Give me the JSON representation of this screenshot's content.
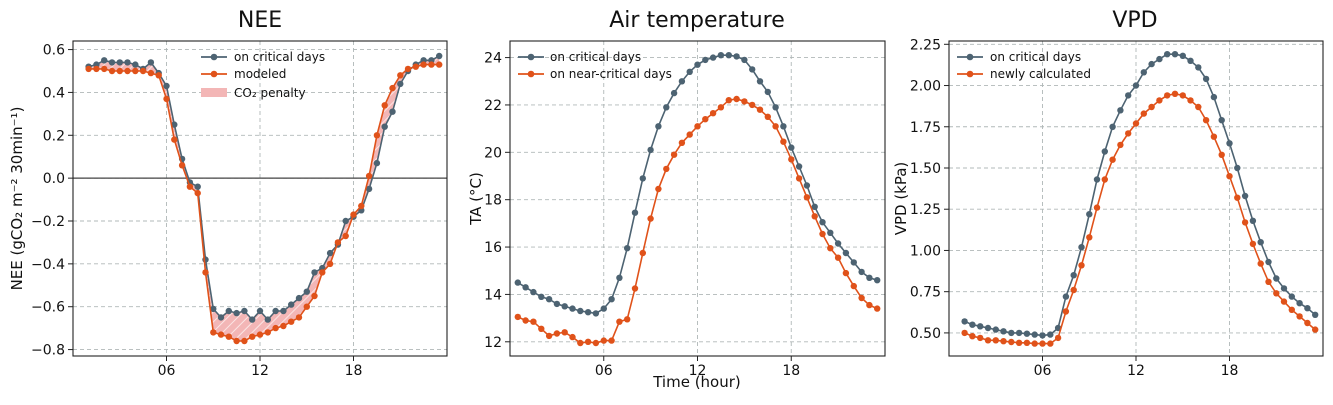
{
  "colors": {
    "critical": "#4d6372",
    "modeled": "#e0521a",
    "penalty_fill": "#f3b6b6",
    "zero_line": "#444444"
  },
  "chart_data": [
    {
      "type": "line",
      "title": "NEE",
      "ylabel": "NEE  (gCO₂ m⁻² 30min⁻¹)",
      "xlabel": "",
      "xlim": [
        0,
        24
      ],
      "ylim": [
        -0.83,
        0.64
      ],
      "xticks": [
        6,
        12,
        18
      ],
      "xticklabels": [
        "06",
        "12",
        "18"
      ],
      "yticks": [
        -0.8,
        -0.6,
        -0.4,
        -0.2,
        0.0,
        0.2,
        0.4,
        0.6
      ],
      "yticklabels": [
        "−0.8",
        "−0.6",
        "−0.4",
        "−0.2",
        "0.0",
        "0.2",
        "0.4",
        "0.6"
      ],
      "zero_line": true,
      "grid": true,
      "legend": "top-right",
      "penalty_label": "CO₂ penalty",
      "x": [
        1,
        1.5,
        2,
        2.5,
        3,
        3.5,
        4,
        4.5,
        5,
        5.5,
        6,
        6.5,
        7,
        7.5,
        8,
        8.5,
        9,
        9.5,
        10,
        10.5,
        11,
        11.5,
        12,
        12.5,
        13,
        13.5,
        14,
        14.5,
        15,
        15.5,
        16,
        16.5,
        17,
        17.5,
        18,
        18.5,
        19,
        19.5,
        20,
        20.5,
        21,
        21.5,
        22,
        22.5,
        23,
        23.5
      ],
      "series": [
        {
          "name": "on critical days",
          "values": [
            0.52,
            0.53,
            0.55,
            0.54,
            0.54,
            0.54,
            0.53,
            0.51,
            0.54,
            0.49,
            0.43,
            0.25,
            0.09,
            -0.02,
            -0.04,
            -0.38,
            -0.61,
            -0.65,
            -0.62,
            -0.63,
            -0.62,
            -0.66,
            -0.62,
            -0.66,
            -0.62,
            -0.62,
            -0.59,
            -0.56,
            -0.53,
            -0.44,
            -0.42,
            -0.35,
            -0.31,
            -0.2,
            -0.18,
            -0.15,
            -0.05,
            0.07,
            0.24,
            0.31,
            0.44,
            0.5,
            0.53,
            0.55,
            0.55,
            0.57
          ]
        },
        {
          "name": "modeled",
          "values": [
            0.51,
            0.51,
            0.51,
            0.5,
            0.5,
            0.5,
            0.5,
            0.5,
            0.49,
            0.48,
            0.37,
            0.18,
            0.06,
            -0.04,
            -0.07,
            -0.44,
            -0.72,
            -0.73,
            -0.74,
            -0.76,
            -0.76,
            -0.74,
            -0.73,
            -0.72,
            -0.7,
            -0.69,
            -0.67,
            -0.65,
            -0.6,
            -0.55,
            -0.44,
            -0.4,
            -0.3,
            -0.27,
            -0.17,
            -0.13,
            0.01,
            0.2,
            0.34,
            0.42,
            0.48,
            0.51,
            0.52,
            0.53,
            0.53,
            0.53
          ]
        }
      ]
    },
    {
      "type": "line",
      "title": "Air temperature",
      "ylabel": "TA  (°C)",
      "xlabel": "Time (hour)",
      "xlim": [
        0,
        24
      ],
      "ylim": [
        11.4,
        24.7
      ],
      "xticks": [
        6,
        12,
        18
      ],
      "xticklabels": [
        "06",
        "12",
        "18"
      ],
      "yticks": [
        12,
        14,
        16,
        18,
        20,
        22,
        24
      ],
      "yticklabels": [
        "12",
        "14",
        "16",
        "18",
        "20",
        "22",
        "24"
      ],
      "grid": true,
      "legend": "top-left",
      "x": [
        0.5,
        1,
        1.5,
        2,
        2.5,
        3,
        3.5,
        4,
        4.5,
        5,
        5.5,
        6,
        6.5,
        7,
        7.5,
        8,
        8.5,
        9,
        9.5,
        10,
        10.5,
        11,
        11.5,
        12,
        12.5,
        13,
        13.5,
        14,
        14.5,
        15,
        15.5,
        16,
        16.5,
        17,
        17.5,
        18,
        18.5,
        19,
        19.5,
        20,
        20.5,
        21,
        21.5,
        22,
        22.5,
        23,
        23.5
      ],
      "series": [
        {
          "name": "on critical days",
          "values": [
            14.5,
            14.3,
            14.1,
            13.9,
            13.8,
            13.6,
            13.5,
            13.4,
            13.3,
            13.25,
            13.2,
            13.4,
            13.8,
            14.7,
            15.95,
            17.45,
            18.9,
            20.1,
            21.1,
            21.9,
            22.5,
            23.0,
            23.4,
            23.7,
            23.9,
            24.0,
            24.1,
            24.1,
            24.05,
            23.9,
            23.5,
            23.0,
            22.55,
            21.9,
            21.1,
            20.2,
            19.4,
            18.6,
            17.7,
            17.05,
            16.6,
            16.15,
            15.75,
            15.35,
            14.95,
            14.7,
            14.6
          ]
        },
        {
          "name": "on near-critical days",
          "values": [
            13.05,
            12.9,
            12.85,
            12.55,
            12.25,
            12.35,
            12.4,
            12.2,
            11.95,
            12.0,
            11.95,
            12.05,
            12.05,
            12.85,
            12.95,
            14.25,
            15.75,
            17.2,
            18.45,
            19.3,
            19.9,
            20.4,
            20.75,
            21.1,
            21.4,
            21.65,
            21.9,
            22.2,
            22.25,
            22.15,
            22.0,
            21.8,
            21.5,
            21.1,
            20.45,
            19.7,
            18.9,
            18.1,
            17.3,
            16.55,
            15.95,
            15.55,
            14.9,
            14.35,
            13.85,
            13.55,
            13.4
          ]
        }
      ]
    },
    {
      "type": "line",
      "title": "VPD",
      "ylabel": "VPD  (kPa)",
      "xlabel": "",
      "xlim": [
        0,
        24
      ],
      "ylim": [
        0.36,
        2.27
      ],
      "xticks": [
        6,
        12,
        18
      ],
      "xticklabels": [
        "06",
        "12",
        "18"
      ],
      "yticks": [
        0.5,
        0.75,
        1.0,
        1.25,
        1.5,
        1.75,
        2.0,
        2.25
      ],
      "yticklabels": [
        "0.50",
        "0.75",
        "1.00",
        "1.25",
        "1.50",
        "1.75",
        "2.00",
        "2.25"
      ],
      "grid": true,
      "legend": "top-left",
      "x": [
        1,
        1.5,
        2,
        2.5,
        3,
        3.5,
        4,
        4.5,
        5,
        5.5,
        6,
        6.5,
        7,
        7.5,
        8,
        8.5,
        9,
        9.5,
        10,
        10.5,
        11,
        11.5,
        12,
        12.5,
        13,
        13.5,
        14,
        14.5,
        15,
        15.5,
        16,
        16.5,
        17,
        17.5,
        18,
        18.5,
        19,
        19.5,
        20,
        20.5,
        21,
        21.5,
        22,
        22.5,
        23,
        23.5
      ],
      "series": [
        {
          "name": "on critical days",
          "values": [
            0.57,
            0.55,
            0.54,
            0.53,
            0.52,
            0.51,
            0.5,
            0.5,
            0.495,
            0.49,
            0.485,
            0.49,
            0.53,
            0.72,
            0.85,
            1.02,
            1.22,
            1.43,
            1.6,
            1.75,
            1.85,
            1.94,
            2.0,
            2.08,
            2.13,
            2.16,
            2.19,
            2.19,
            2.18,
            2.15,
            2.11,
            2.04,
            1.93,
            1.79,
            1.65,
            1.5,
            1.33,
            1.18,
            1.05,
            0.93,
            0.83,
            0.77,
            0.72,
            0.68,
            0.65,
            0.61
          ]
        },
        {
          "name": "newly calculated",
          "values": [
            0.5,
            0.48,
            0.47,
            0.455,
            0.455,
            0.45,
            0.445,
            0.44,
            0.44,
            0.435,
            0.435,
            0.435,
            0.47,
            0.63,
            0.76,
            0.91,
            1.08,
            1.26,
            1.43,
            1.55,
            1.64,
            1.71,
            1.77,
            1.83,
            1.87,
            1.91,
            1.94,
            1.95,
            1.94,
            1.91,
            1.87,
            1.79,
            1.69,
            1.58,
            1.45,
            1.32,
            1.17,
            1.04,
            0.92,
            0.81,
            0.74,
            0.69,
            0.64,
            0.6,
            0.56,
            0.52
          ]
        }
      ]
    }
  ]
}
